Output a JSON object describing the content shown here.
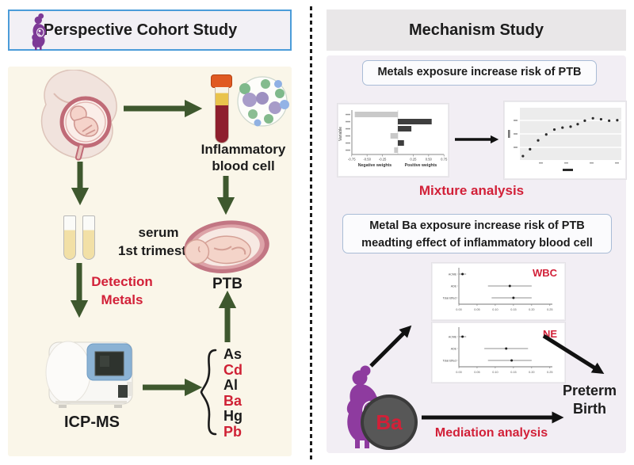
{
  "colors": {
    "green_arrow": "#3e582e",
    "red_text": "#d22038",
    "purple": "#8e3b9f",
    "left_panel_bg": "#faf6e9",
    "right_panel_bg": "#f2eef4",
    "header_box_border": "#4b9cd9",
    "right_header_bg": "#e9e7e8",
    "info_box_border": "#a9bcd6",
    "bar_negative": "#c9c9c9",
    "bar_positive": "#3e3e3e"
  },
  "left": {
    "header_title": "Perspective Cohort Study",
    "inflammatory_line1": "Inflammatory",
    "inflammatory_line2": "blood cell",
    "serum_line1": "serum",
    "serum_line2": "1st trimester",
    "detection_line1": "Detection",
    "detection_line2": "Metals",
    "ptb_label": "PTB",
    "icpms_label": "ICP-MS",
    "metals": [
      {
        "symbol": "As",
        "highlight": false
      },
      {
        "symbol": "Cd",
        "highlight": true
      },
      {
        "symbol": "Al",
        "highlight": false
      },
      {
        "symbol": "Ba",
        "highlight": true
      },
      {
        "symbol": "Hg",
        "highlight": false
      },
      {
        "symbol": "Pb",
        "highlight": true
      }
    ]
  },
  "right": {
    "header_title": "Mechanism Study",
    "box1": "Metals exposure increase risk of PTB",
    "mixture_label": "Mixture analysis",
    "box2_line1": "Metal Ba exposure increase risk of PTB",
    "box2_line2": "meadting effect of inflammatory blood cell",
    "ba_label": "Ba",
    "mediation_label": "Mediation analysis",
    "preterm_line1": "Preterm",
    "preterm_line2": "Birth"
  },
  "chart_data": [
    {
      "type": "bar",
      "id": "mixture-weights",
      "orientation": "horizontal",
      "ylabel": "Variable",
      "xlabel_left": "Negative weights",
      "xlabel_right": "Positive weights",
      "xticks": [
        -0.75,
        -0.5,
        -0.25,
        0.25,
        0.5,
        0.75
      ],
      "xlim": [
        -0.85,
        0.85
      ],
      "bars": [
        {
          "value": -0.7,
          "direction": "negative"
        },
        {
          "value": 0.55,
          "direction": "positive"
        },
        {
          "value": 0.22,
          "direction": "positive"
        },
        {
          "value": -0.12,
          "direction": "negative"
        },
        {
          "value": 0.1,
          "direction": "positive"
        },
        {
          "value": -0.06,
          "direction": "negative"
        }
      ],
      "note": "bar category labels illegible in source image"
    },
    {
      "type": "scatter",
      "id": "overall-effect",
      "points_norm": [
        [
          0.03,
          0.08
        ],
        [
          0.1,
          0.22
        ],
        [
          0.18,
          0.4
        ],
        [
          0.26,
          0.52
        ],
        [
          0.34,
          0.62
        ],
        [
          0.42,
          0.66
        ],
        [
          0.5,
          0.68
        ],
        [
          0.57,
          0.73
        ],
        [
          0.64,
          0.8
        ],
        [
          0.72,
          0.85
        ],
        [
          0.8,
          0.83
        ],
        [
          0.88,
          0.8
        ],
        [
          0.96,
          0.81
        ]
      ],
      "note": "axis tick labels illegible in source image; points normalized 0-1"
    },
    {
      "type": "forest",
      "id": "wbc-mediation",
      "label": "WBC",
      "xticks": [
        0,
        0.05,
        0.1,
        0.15,
        0.2,
        0.25
      ],
      "rows": [
        {
          "name": "ACME",
          "lo": 0.0,
          "mid": 0.01,
          "hi": 0.02
        },
        {
          "name": "ADE",
          "lo": 0.08,
          "mid": 0.14,
          "hi": 0.2
        },
        {
          "name": "Total Effect",
          "lo": 0.09,
          "mid": 0.15,
          "hi": 0.2
        }
      ]
    },
    {
      "type": "forest",
      "id": "ne-mediation",
      "label": "NE",
      "xticks": [
        0,
        0.05,
        0.1,
        0.15,
        0.2,
        0.25
      ],
      "rows": [
        {
          "name": "ACME",
          "lo": 0.0,
          "mid": 0.01,
          "hi": 0.02
        },
        {
          "name": "ADE",
          "lo": 0.07,
          "mid": 0.13,
          "hi": 0.19
        },
        {
          "name": "Total Effect",
          "lo": 0.08,
          "mid": 0.145,
          "hi": 0.2
        }
      ]
    }
  ]
}
